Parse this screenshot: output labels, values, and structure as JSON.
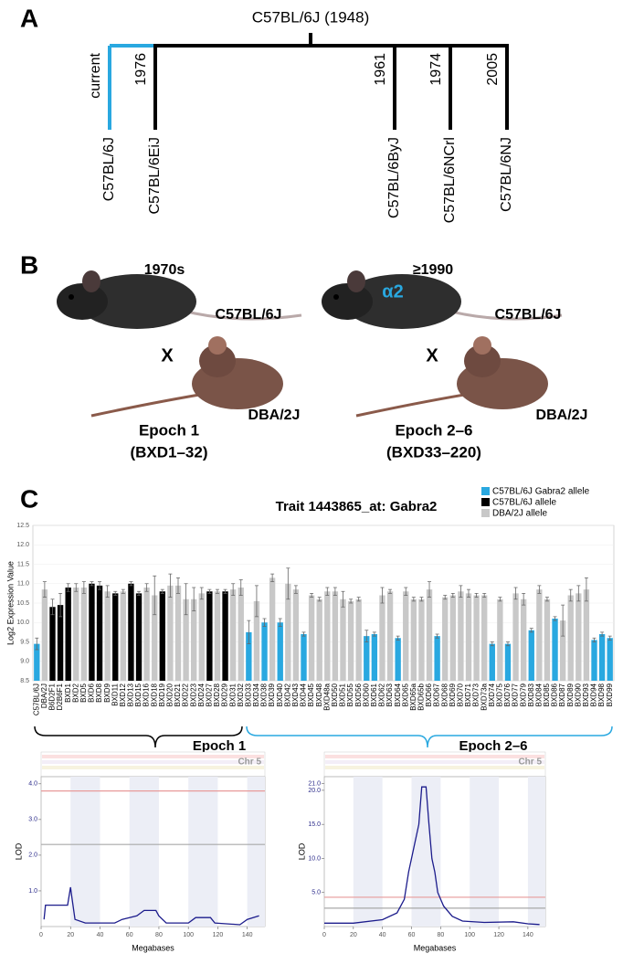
{
  "panel_labels": [
    "A",
    "B",
    "C"
  ],
  "tree": {
    "root": "C57BL/6J (1948)",
    "branches": [
      {
        "strain": "C57BL/6J",
        "note": "current"
      },
      {
        "strain": "C57BL/6EiJ",
        "note": "1976"
      },
      {
        "strain": "C57BL/6ByJ",
        "note": "1961"
      },
      {
        "strain": "C57BL/6NCrl",
        "note": "1974"
      },
      {
        "strain": "C57BL/6NJ",
        "note": "2005"
      }
    ]
  },
  "crosses": [
    {
      "era": "1970s",
      "strain": "C57BL/6J",
      "cross": "X",
      "partner": "DBA/2J",
      "epoch": "Epoch 1",
      "range": "(BXD1–32)"
    },
    {
      "era": "≥1990",
      "marker": "α2",
      "strain": "C57BL/6J",
      "cross": "X",
      "partner": "DBA/2J",
      "epoch": "Epoch 2–6",
      "range": "(BXD33–220)"
    }
  ],
  "chart_data": [
    {
      "type": "bar",
      "title": "Trait 1443865_at: Gabra2",
      "y_label": "Log2 Expression Value",
      "categories": [
        "C57BL/6J",
        "DBA/2J",
        "B6D2F1",
        "D2B6F1",
        "BXD1",
        "BXD2",
        "BXD5",
        "BXD6",
        "BXD8",
        "BXD9",
        "BXD11",
        "BXD12",
        "BXD13",
        "BXD15",
        "BXD16",
        "BXD18",
        "BXD19",
        "BXD20",
        "BXD21",
        "BXD22",
        "BXD23",
        "BXD24",
        "BXD27",
        "BXD28",
        "BXD29",
        "BXD31",
        "BXD32",
        "BXD33",
        "BXD34",
        "BXD38",
        "BXD39",
        "BXD40",
        "BXD42",
        "BXD43",
        "BXD44",
        "BXD45",
        "BXD48",
        "BXD48a",
        "BXD50",
        "BXD51",
        "BXD55",
        "BXD56",
        "BXD60",
        "BXD61",
        "BXD62",
        "BXD63",
        "BXD64",
        "BXD65",
        "BXD65a",
        "BXD65b",
        "BXD66",
        "BXD67",
        "BXD68",
        "BXD69",
        "BXD70",
        "BXD71",
        "BXD73",
        "BXD73a",
        "BXD74",
        "BXD75",
        "BXD76",
        "BXD77",
        "BXD79",
        "BXD83",
        "BXD84",
        "BXD85",
        "BXD86",
        "BXD87",
        "BXD89",
        "BXD90",
        "BXD93",
        "BXD94",
        "BXD98",
        "BXD99"
      ],
      "series": [
        {
          "name": "C57BL/6J Gabra2 allele",
          "color": "#29a8e0",
          "values": [
            9.45,
            null,
            null,
            null,
            null,
            null,
            null,
            null,
            null,
            null,
            null,
            null,
            null,
            null,
            null,
            null,
            null,
            null,
            null,
            null,
            null,
            null,
            null,
            null,
            null,
            null,
            null,
            9.75,
            null,
            10.0,
            null,
            10.0,
            null,
            null,
            9.7,
            null,
            null,
            null,
            null,
            null,
            null,
            null,
            9.65,
            9.7,
            null,
            null,
            9.6,
            null,
            null,
            null,
            null,
            9.65,
            null,
            null,
            null,
            null,
            null,
            null,
            9.45,
            null,
            9.45,
            null,
            null,
            9.8,
            null,
            null,
            10.1,
            null,
            null,
            null,
            null,
            9.55,
            9.7,
            9.6
          ],
          "errors": [
            0.15,
            null,
            null,
            null,
            null,
            null,
            null,
            null,
            null,
            null,
            null,
            null,
            null,
            null,
            null,
            null,
            null,
            null,
            null,
            null,
            null,
            null,
            null,
            null,
            null,
            null,
            null,
            0.3,
            null,
            0.1,
            null,
            0.1,
            null,
            null,
            0.05,
            null,
            null,
            null,
            null,
            null,
            null,
            null,
            0.15,
            0.05,
            null,
            null,
            0.05,
            null,
            null,
            null,
            null,
            0.05,
            null,
            null,
            null,
            null,
            null,
            null,
            0.05,
            null,
            0.05,
            null,
            null,
            0.05,
            null,
            null,
            0.05,
            null,
            null,
            null,
            null,
            0.05,
            0.05,
            0.05
          ]
        },
        {
          "name": "C57BL/6J allele",
          "color": "#000000",
          "values": [
            null,
            null,
            10.4,
            10.45,
            10.9,
            null,
            null,
            11.0,
            10.95,
            null,
            10.75,
            null,
            11.0,
            10.75,
            null,
            null,
            10.8,
            null,
            null,
            null,
            null,
            null,
            10.8,
            null,
            10.8,
            null,
            null,
            null,
            null,
            null,
            null,
            null,
            null,
            null,
            null,
            null,
            null,
            null,
            null,
            null,
            null,
            null,
            null,
            null,
            null,
            null,
            null,
            null,
            null,
            null,
            null,
            null,
            null,
            null,
            null,
            null,
            null,
            null,
            null,
            null,
            null,
            null,
            null,
            null,
            null,
            null,
            null,
            null,
            null,
            null,
            null,
            null,
            null,
            null
          ],
          "errors": [
            null,
            null,
            0.2,
            0.3,
            0.1,
            null,
            null,
            0.05,
            0.1,
            null,
            0.05,
            null,
            0.05,
            0.05,
            null,
            null,
            0.05,
            null,
            null,
            null,
            null,
            null,
            0.05,
            null,
            0.05,
            null,
            null,
            null,
            null,
            null,
            null,
            null,
            null,
            null,
            null,
            null,
            null,
            null,
            null,
            null,
            null,
            null,
            null,
            null,
            null,
            null,
            null,
            null,
            null,
            null,
            null,
            null,
            null,
            null,
            null,
            null,
            null,
            null,
            null,
            null,
            null,
            null,
            null,
            null,
            null,
            null,
            null,
            null,
            null,
            null,
            null,
            null,
            null,
            null
          ]
        },
        {
          "name": "DBA/2J allele",
          "color": "#c8c8c8",
          "values": [
            null,
            10.85,
            null,
            null,
            null,
            10.9,
            10.9,
            null,
            null,
            10.8,
            null,
            10.8,
            null,
            null,
            10.9,
            10.7,
            null,
            10.95,
            10.95,
            10.6,
            10.6,
            10.75,
            null,
            10.8,
            null,
            10.85,
            10.9,
            null,
            10.55,
            null,
            11.15,
            null,
            11.0,
            10.85,
            null,
            10.7,
            10.6,
            10.8,
            10.8,
            10.6,
            10.55,
            10.6,
            null,
            null,
            10.7,
            10.8,
            null,
            10.8,
            10.6,
            10.6,
            10.85,
            null,
            10.65,
            10.7,
            10.8,
            10.75,
            10.7,
            10.7,
            null,
            10.6,
            null,
            10.75,
            10.6,
            null,
            10.85,
            10.6,
            null,
            10.05,
            10.7,
            10.75,
            10.85,
            null,
            null,
            null
          ],
          "errors": [
            null,
            0.2,
            null,
            null,
            null,
            0.1,
            0.15,
            null,
            null,
            0.15,
            null,
            0.05,
            null,
            null,
            0.1,
            0.5,
            null,
            0.3,
            0.2,
            0.4,
            0.3,
            0.15,
            null,
            0.05,
            null,
            0.15,
            0.2,
            null,
            0.4,
            null,
            0.1,
            null,
            0.4,
            0.1,
            null,
            0.05,
            0.05,
            0.1,
            0.1,
            0.2,
            0.05,
            0.05,
            null,
            null,
            0.2,
            0.05,
            null,
            0.1,
            0.05,
            0.05,
            0.2,
            null,
            0.05,
            0.05,
            0.15,
            0.1,
            0.05,
            0.05,
            null,
            0.05,
            null,
            0.15,
            0.15,
            null,
            0.1,
            0.05,
            null,
            0.4,
            0.15,
            0.2,
            0.3,
            null,
            null,
            null
          ]
        }
      ],
      "ylim": [
        8.5,
        12.5
      ],
      "yticks": [
        8.5,
        {
          "value": 9,
          "label": "9.0"
        },
        9.5,
        {
          "value": 10,
          "label": "10.0"
        },
        10.5,
        {
          "value": 11,
          "label": "11.0"
        },
        11.5,
        {
          "value": 12,
          "label": "12.0"
        },
        12.5
      ],
      "grid": true
    },
    {
      "type": "line",
      "title": "Epoch 1",
      "chromosome": "Chr 5",
      "x_label": "Megabases",
      "y_label": "LOD",
      "color": "#1c1c8c",
      "x": [
        2,
        3,
        18,
        20,
        21,
        23,
        30,
        50,
        55,
        65,
        70,
        78,
        80,
        85,
        100,
        105,
        115,
        118,
        135,
        140,
        148
      ],
      "values": [
        0.2,
        0.6,
        0.6,
        1.1,
        0.8,
        0.2,
        0.1,
        0.1,
        0.2,
        0.3,
        0.45,
        0.45,
        0.3,
        0.1,
        0.1,
        0.25,
        0.25,
        0.1,
        0.05,
        0.2,
        0.3
      ],
      "thresholds": [
        {
          "value": 3.8,
          "color": "#e79a9a"
        },
        {
          "value": 2.3,
          "color": "#a8a8a8"
        }
      ],
      "xlim": [
        0,
        152
      ],
      "ylim": [
        0,
        4.2
      ],
      "xticks": [
        0,
        20,
        40,
        60,
        80,
        100,
        120,
        140
      ],
      "yticks": [
        {
          "value": 1,
          "label": "1.0"
        },
        {
          "value": 2,
          "label": "2.0"
        },
        {
          "value": 3,
          "label": "3.0"
        },
        {
          "value": 4,
          "label": "4.0"
        }
      ]
    },
    {
      "type": "line",
      "title": "Epoch 2–6",
      "chromosome": "Chr 5",
      "x_label": "Megabases",
      "y_label": "LOD",
      "color": "#1c1c8c",
      "x": [
        0,
        20,
        40,
        50,
        55,
        58,
        62,
        65,
        67,
        70,
        72,
        74,
        76,
        78,
        82,
        88,
        95,
        110,
        130,
        140,
        148
      ],
      "values": [
        0.5,
        0.5,
        1,
        2,
        4,
        8,
        12,
        15,
        20.5,
        20.5,
        15,
        10,
        8,
        5,
        3,
        1.5,
        0.8,
        0.6,
        0.7,
        0.4,
        0.3
      ],
      "thresholds": [
        {
          "value": 4.3,
          "color": "#e79a9a"
        },
        {
          "value": 2.7,
          "color": "#a8a8a8"
        }
      ],
      "xlim": [
        0,
        152
      ],
      "ylim": [
        0,
        22
      ],
      "xticks": [
        0,
        20,
        40,
        60,
        80,
        100,
        120,
        140
      ],
      "yticks": [
        {
          "value": 5,
          "label": "5.0"
        },
        {
          "value": 10,
          "label": "10.0"
        },
        {
          "value": 15,
          "label": "15.0"
        },
        {
          "value": 20,
          "label": "20.0"
        },
        {
          "value": 21,
          "label": "21.0"
        }
      ]
    }
  ]
}
